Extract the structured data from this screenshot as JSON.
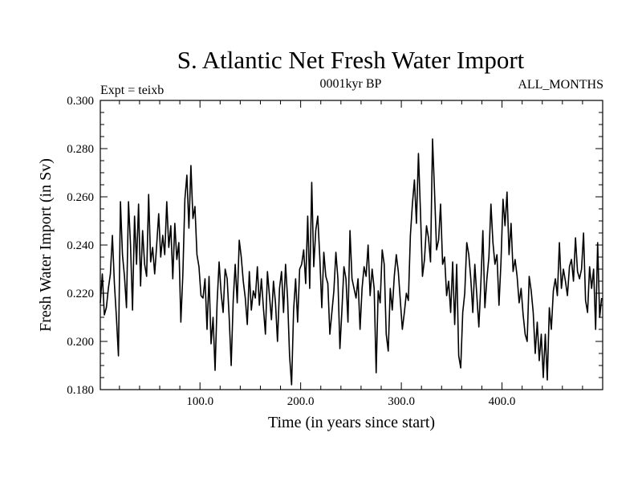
{
  "chart_data": {
    "type": "line",
    "title": "S. Atlantic Net Fresh Water Import",
    "subtitle_left": "Expt = teixb",
    "subtitle_center": "0001kyr BP",
    "subtitle_right": "ALL_MONTHS",
    "xlabel": "Time (in years since start)",
    "ylabel": "Fresh Water Import (in Sv)",
    "xlim": [
      1,
      500
    ],
    "ylim": [
      0.18,
      0.3
    ],
    "x_ticks": [
      100,
      200,
      300,
      400
    ],
    "x_tick_labels": [
      "100.0",
      "200.0",
      "300.0",
      "400.0"
    ],
    "y_ticks": [
      0.18,
      0.2,
      0.22,
      0.24,
      0.26,
      0.28,
      0.3
    ],
    "y_tick_labels": [
      "0.180",
      "0.200",
      "0.220",
      "0.240",
      "0.260",
      "0.280",
      "0.300"
    ],
    "line_color": "#000000",
    "grid": false,
    "series": [
      {
        "x_start": 1,
        "x_step": 2,
        "values": [
          0.216,
          0.228,
          0.211,
          0.214,
          0.222,
          0.228,
          0.244,
          0.224,
          0.21,
          0.194,
          0.258,
          0.236,
          0.227,
          0.214,
          0.258,
          0.24,
          0.213,
          0.252,
          0.232,
          0.257,
          0.223,
          0.246,
          0.232,
          0.227,
          0.261,
          0.233,
          0.239,
          0.228,
          0.24,
          0.253,
          0.235,
          0.244,
          0.236,
          0.258,
          0.239,
          0.248,
          0.226,
          0.249,
          0.234,
          0.241,
          0.208,
          0.228,
          0.259,
          0.269,
          0.247,
          0.273,
          0.251,
          0.256,
          0.236,
          0.231,
          0.219,
          0.218,
          0.226,
          0.205,
          0.227,
          0.199,
          0.21,
          0.188,
          0.216,
          0.233,
          0.22,
          0.212,
          0.23,
          0.226,
          0.21,
          0.19,
          0.217,
          0.232,
          0.216,
          0.242,
          0.235,
          0.225,
          0.218,
          0.207,
          0.229,
          0.213,
          0.221,
          0.218,
          0.231,
          0.215,
          0.226,
          0.214,
          0.203,
          0.229,
          0.219,
          0.209,
          0.225,
          0.216,
          0.2,
          0.222,
          0.229,
          0.212,
          0.232,
          0.218,
          0.194,
          0.182,
          0.213,
          0.226,
          0.208,
          0.23,
          0.232,
          0.238,
          0.224,
          0.252,
          0.222,
          0.266,
          0.231,
          0.246,
          0.252,
          0.235,
          0.214,
          0.237,
          0.227,
          0.224,
          0.203,
          0.212,
          0.221,
          0.237,
          0.226,
          0.197,
          0.213,
          0.231,
          0.226,
          0.208,
          0.246,
          0.226,
          0.222,
          0.218,
          0.226,
          0.205,
          0.222,
          0.231,
          0.227,
          0.24,
          0.219,
          0.23,
          0.222,
          0.187,
          0.221,
          0.216,
          0.238,
          0.232,
          0.203,
          0.196,
          0.222,
          0.213,
          0.227,
          0.236,
          0.229,
          0.217,
          0.205,
          0.212,
          0.22,
          0.217,
          0.244,
          0.257,
          0.267,
          0.249,
          0.278,
          0.254,
          0.227,
          0.234,
          0.248,
          0.243,
          0.233,
          0.284,
          0.262,
          0.238,
          0.242,
          0.257,
          0.232,
          0.235,
          0.219,
          0.225,
          0.212,
          0.233,
          0.207,
          0.232,
          0.194,
          0.189,
          0.212,
          0.22,
          0.241,
          0.236,
          0.226,
          0.212,
          0.232,
          0.219,
          0.206,
          0.224,
          0.246,
          0.214,
          0.226,
          0.235,
          0.257,
          0.241,
          0.232,
          0.236,
          0.215,
          0.233,
          0.259,
          0.248,
          0.262,
          0.236,
          0.249,
          0.229,
          0.234,
          0.227,
          0.216,
          0.222,
          0.211,
          0.203,
          0.2,
          0.227,
          0.221,
          0.212,
          0.195,
          0.208,
          0.192,
          0.203,
          0.185,
          0.203,
          0.184,
          0.214,
          0.205,
          0.221,
          0.226,
          0.219,
          0.241,
          0.222,
          0.23,
          0.225,
          0.219,
          0.231,
          0.234,
          0.225,
          0.243,
          0.229,
          0.226,
          0.23,
          0.245,
          0.217,
          0.212,
          0.231,
          0.222,
          0.23,
          0.205,
          0.241,
          0.21,
          0.218
        ]
      }
    ]
  }
}
